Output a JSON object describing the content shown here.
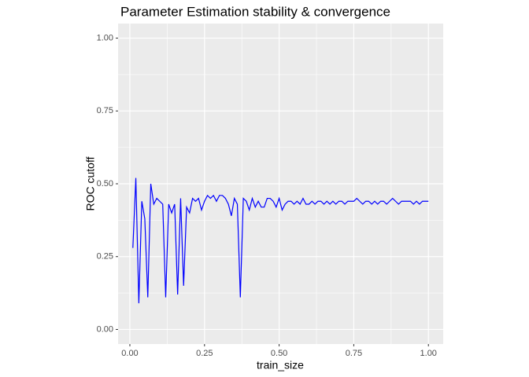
{
  "chart_data": {
    "type": "line",
    "title": "Parameter Estimation stability & convergence",
    "x_label": "train_size",
    "y_label": "ROC cutoff",
    "x": [
      0.01,
      0.02,
      0.03,
      0.04,
      0.05,
      0.06,
      0.07,
      0.08,
      0.09,
      0.1,
      0.11,
      0.12,
      0.13,
      0.14,
      0.15,
      0.16,
      0.17,
      0.18,
      0.19,
      0.2,
      0.21,
      0.22,
      0.23,
      0.24,
      0.25,
      0.26,
      0.27,
      0.28,
      0.29,
      0.3,
      0.31,
      0.32,
      0.33,
      0.34,
      0.35,
      0.36,
      0.37,
      0.38,
      0.39,
      0.4,
      0.41,
      0.42,
      0.43,
      0.44,
      0.45,
      0.46,
      0.47,
      0.48,
      0.49,
      0.5,
      0.51,
      0.52,
      0.53,
      0.54,
      0.55,
      0.56,
      0.57,
      0.58,
      0.59,
      0.6,
      0.61,
      0.62,
      0.63,
      0.64,
      0.65,
      0.66,
      0.67,
      0.68,
      0.69,
      0.7,
      0.71,
      0.72,
      0.73,
      0.74,
      0.75,
      0.76,
      0.77,
      0.78,
      0.79,
      0.8,
      0.81,
      0.82,
      0.83,
      0.84,
      0.85,
      0.86,
      0.87,
      0.88,
      0.89,
      0.9,
      0.91,
      0.92,
      0.93,
      0.94,
      0.95,
      0.96,
      0.97,
      0.98,
      0.99,
      1.0
    ],
    "series": [
      {
        "color": "#0000ff",
        "values": [
          0.28,
          0.52,
          0.09,
          0.44,
          0.38,
          0.11,
          0.5,
          0.43,
          0.45,
          0.44,
          0.43,
          0.11,
          0.43,
          0.4,
          0.43,
          0.12,
          0.45,
          0.15,
          0.42,
          0.4,
          0.45,
          0.44,
          0.45,
          0.41,
          0.44,
          0.46,
          0.45,
          0.46,
          0.44,
          0.46,
          0.46,
          0.45,
          0.43,
          0.39,
          0.45,
          0.43,
          0.11,
          0.45,
          0.44,
          0.41,
          0.45,
          0.42,
          0.44,
          0.42,
          0.42,
          0.45,
          0.45,
          0.44,
          0.42,
          0.45,
          0.41,
          0.43,
          0.44,
          0.44,
          0.43,
          0.44,
          0.43,
          0.45,
          0.43,
          0.43,
          0.44,
          0.43,
          0.44,
          0.44,
          0.43,
          0.44,
          0.43,
          0.44,
          0.43,
          0.44,
          0.44,
          0.43,
          0.44,
          0.44,
          0.44,
          0.45,
          0.44,
          0.43,
          0.44,
          0.44,
          0.43,
          0.44,
          0.43,
          0.44,
          0.44,
          0.43,
          0.44,
          0.45,
          0.44,
          0.43,
          0.44,
          0.44,
          0.44,
          0.44,
          0.43,
          0.44,
          0.43,
          0.44,
          0.44,
          0.44
        ]
      }
    ],
    "xlim": [
      -0.0395,
      1.0495
    ],
    "ylim": [
      -0.05,
      1.05
    ],
    "xticks": [
      {
        "value": 0,
        "label": "0.00"
      },
      0.25,
      {
        "value": 0.5,
        "label": "0.50"
      },
      0.75,
      {
        "value": 1,
        "label": "1.00"
      }
    ],
    "yticks": [
      {
        "value": 0,
        "label": "0.00"
      },
      0.25,
      {
        "value": 0.5,
        "label": "0.50"
      },
      0.75,
      {
        "value": 1,
        "label": "1.00"
      }
    ],
    "grid": true,
    "minor_grid": true
  }
}
